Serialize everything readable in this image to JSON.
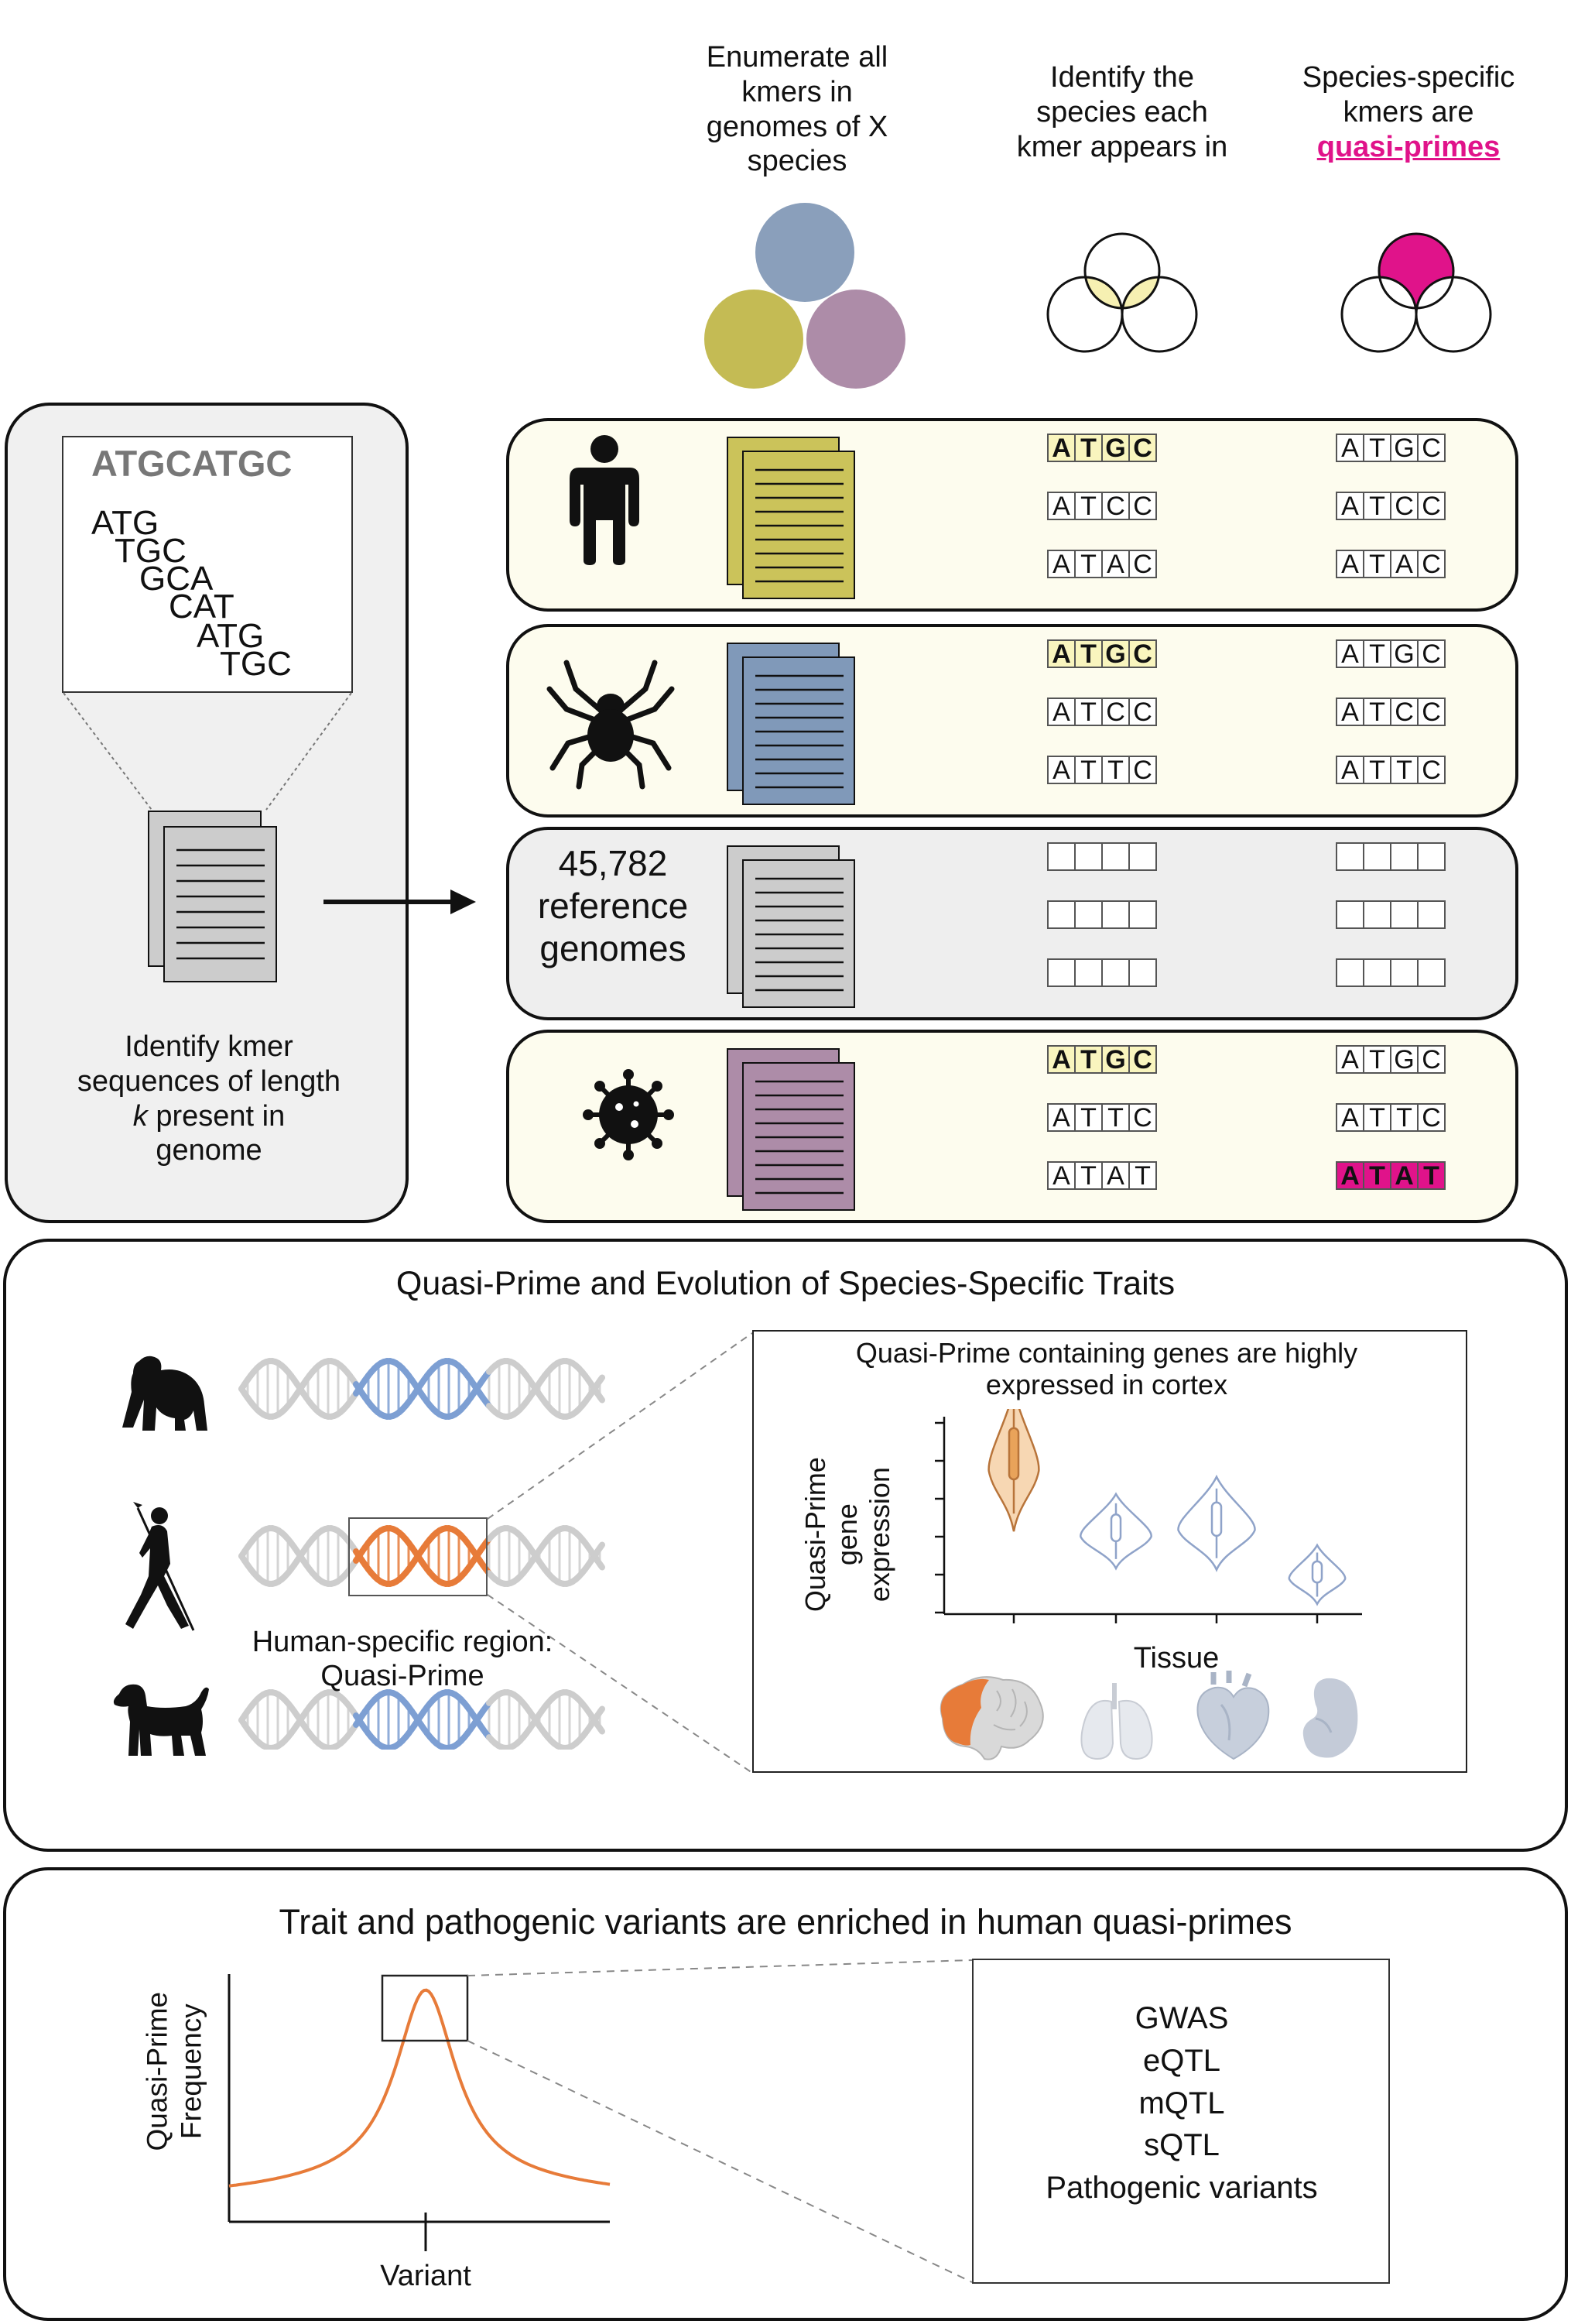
{
  "header": {
    "step1": [
      "Enumerate all",
      "kmers in",
      "genomes of X",
      "species"
    ],
    "step2": [
      "Identify the",
      "species each",
      "kmer appears in"
    ],
    "step3": [
      "Species-specific",
      "kmers are"
    ],
    "step3_highlight": "quasi-primes"
  },
  "kmer_panel": {
    "sequence": "ATGCATGC",
    "kmers": [
      "ATG",
      "TGC",
      "GCA",
      "CAT",
      "ATG",
      "TGC"
    ],
    "caption_lines": [
      "Identify kmer",
      "sequences of length"
    ],
    "caption_k": "k",
    "caption_rest": " present in",
    "caption_last": "genome"
  },
  "reference_label": [
    "45,782",
    "reference",
    "genomes"
  ],
  "species_rows": [
    {
      "icon": "human-icon",
      "doc_color": "#cbc35a",
      "bg": "#fdfcee",
      "mid": [
        [
          "A",
          "T",
          "G",
          "C"
        ],
        [
          "A",
          "T",
          "C",
          "C"
        ],
        [
          "A",
          "T",
          "A",
          "C"
        ]
      ],
      "right": [
        [
          "A",
          "T",
          "G",
          "C"
        ],
        [
          "A",
          "T",
          "C",
          "C"
        ],
        [
          "A",
          "T",
          "A",
          "C"
        ]
      ]
    },
    {
      "icon": "spider-icon",
      "doc_color": "#8099b9",
      "bg": "#fdfcee",
      "mid": [
        [
          "A",
          "T",
          "G",
          "C"
        ],
        [
          "A",
          "T",
          "C",
          "C"
        ],
        [
          "A",
          "T",
          "T",
          "C"
        ]
      ],
      "right": [
        [
          "A",
          "T",
          "G",
          "C"
        ],
        [
          "A",
          "T",
          "C",
          "C"
        ],
        [
          "A",
          "T",
          "T",
          "C"
        ]
      ]
    },
    {
      "icon": "none",
      "doc_color": "#cccccc",
      "bg": "#eeeeee",
      "mid": [
        [
          "",
          "",
          "",
          ""
        ],
        [
          "",
          "",
          "",
          ""
        ],
        [
          "",
          "",
          "",
          ""
        ]
      ],
      "right": [
        [
          "",
          "",
          "",
          ""
        ],
        [
          "",
          "",
          "",
          ""
        ],
        [
          "",
          "",
          "",
          ""
        ]
      ]
    },
    {
      "icon": "virus-icon",
      "doc_color": "#ad8ca8",
      "bg": "#fdfcee",
      "mid": [
        [
          "A",
          "T",
          "G",
          "C"
        ],
        [
          "A",
          "T",
          "T",
          "C"
        ],
        [
          "A",
          "T",
          "A",
          "T"
        ]
      ],
      "right": [
        [
          "A",
          "T",
          "G",
          "C"
        ],
        [
          "A",
          "T",
          "T",
          "C"
        ],
        [
          "A",
          "T",
          "A",
          "T"
        ]
      ]
    }
  ],
  "evolution": {
    "title": "Quasi-Prime and Evolution of Species-Specific Traits",
    "region_label": [
      "Human-specific region:",
      "Quasi-Prime"
    ]
  },
  "violin": {
    "title": [
      "Quasi-Prime containing genes are highly",
      "expressed in cortex"
    ],
    "ylabel": [
      "Quasi-Prime",
      "gene",
      "expression"
    ],
    "xlabel": "Tissue"
  },
  "chart_data": {
    "type": "violin",
    "categories": [
      "cortex",
      "lung",
      "heart",
      "kidney"
    ],
    "values": [
      0.78,
      0.42,
      0.46,
      0.2
    ],
    "series_colors": [
      "#e9a35a",
      "#8fa3c9",
      "#8fa3c9",
      "#8fa3c9"
    ],
    "ylim": [
      0,
      1
    ]
  },
  "variants": {
    "title": "Trait and pathogenic variants are enriched in human quasi-primes",
    "ylabel": [
      "Quasi-Prime",
      "Frequency"
    ],
    "xlabel": "Variant",
    "list": [
      "GWAS",
      "eQTL",
      "mQTL",
      "sQTL",
      "Pathogenic variants"
    ]
  },
  "colors": {
    "quasi_prime": "#e0138a",
    "highlight": "#f9f5be",
    "orange": "#e77b39",
    "blue": "#7d9fd3",
    "grey": "#cdcdcd"
  }
}
